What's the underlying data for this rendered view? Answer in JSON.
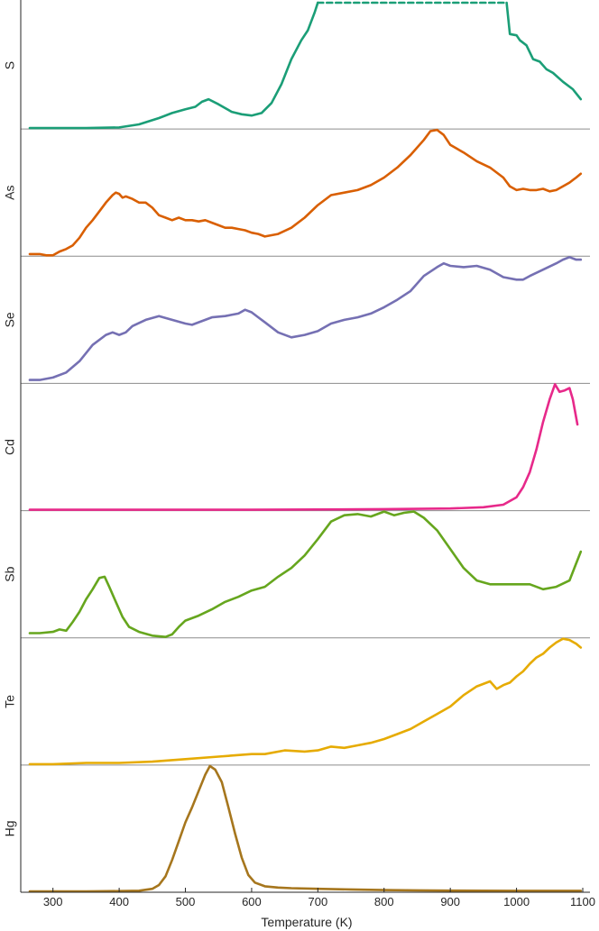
{
  "chart_data": {
    "type": "line",
    "xlabel": "Temperature (K)",
    "xlim": [
      265,
      1100
    ],
    "x_ticks": [
      300,
      400,
      500,
      600,
      700,
      800,
      900,
      1000,
      1100
    ],
    "x_tick_labels": [
      "300",
      "400",
      "500",
      "600",
      "700",
      "800",
      "900",
      "1000",
      "1100"
    ],
    "grid": false,
    "panels": [
      {
        "label": "S",
        "color": "#1b9e77",
        "ylim": [
          0,
          1
        ],
        "clipped_range": [
          700,
          985
        ],
        "x": [
          265,
          300,
          350,
          400,
          430,
          460,
          480,
          500,
          515,
          525,
          535,
          550,
          570,
          585,
          600,
          615,
          630,
          645,
          660,
          675,
          685,
          695,
          700,
          985,
          990,
          1000,
          1005,
          1015,
          1025,
          1035,
          1045,
          1055,
          1070,
          1085,
          1097
        ],
        "y": [
          0,
          0,
          0,
          0.005,
          0.03,
          0.08,
          0.12,
          0.15,
          0.17,
          0.21,
          0.23,
          0.19,
          0.13,
          0.11,
          0.1,
          0.12,
          0.2,
          0.35,
          0.55,
          0.7,
          0.78,
          0.92,
          1.0,
          1.0,
          0.75,
          0.74,
          0.7,
          0.66,
          0.55,
          0.53,
          0.47,
          0.44,
          0.37,
          0.31,
          0.23
        ]
      },
      {
        "label": "As",
        "color": "#d95f02",
        "ylim": [
          0,
          1
        ],
        "x": [
          265,
          280,
          290,
          300,
          310,
          320,
          330,
          340,
          350,
          360,
          370,
          380,
          390,
          395,
          400,
          405,
          410,
          420,
          430,
          440,
          450,
          460,
          470,
          480,
          490,
          500,
          510,
          520,
          530,
          540,
          550,
          560,
          570,
          580,
          590,
          600,
          610,
          620,
          640,
          660,
          680,
          700,
          720,
          740,
          760,
          780,
          800,
          820,
          840,
          860,
          870,
          880,
          890,
          900,
          920,
          940,
          960,
          980,
          990,
          1000,
          1010,
          1020,
          1030,
          1040,
          1050,
          1060,
          1070,
          1080,
          1090,
          1097
        ],
        "y": [
          0.01,
          0.01,
          0.0,
          0.0,
          0.03,
          0.05,
          0.08,
          0.14,
          0.22,
          0.28,
          0.35,
          0.42,
          0.48,
          0.5,
          0.49,
          0.46,
          0.47,
          0.45,
          0.42,
          0.42,
          0.38,
          0.32,
          0.3,
          0.28,
          0.3,
          0.28,
          0.28,
          0.27,
          0.28,
          0.26,
          0.24,
          0.22,
          0.22,
          0.21,
          0.2,
          0.18,
          0.17,
          0.15,
          0.17,
          0.22,
          0.3,
          0.4,
          0.48,
          0.5,
          0.52,
          0.56,
          0.62,
          0.7,
          0.8,
          0.92,
          0.99,
          1.0,
          0.96,
          0.88,
          0.82,
          0.75,
          0.7,
          0.62,
          0.55,
          0.52,
          0.53,
          0.52,
          0.52,
          0.53,
          0.51,
          0.52,
          0.55,
          0.58,
          0.62,
          0.65
        ]
      },
      {
        "label": "Se",
        "color": "#7570b3",
        "ylim": [
          0,
          1
        ],
        "x": [
          265,
          280,
          300,
          320,
          340,
          360,
          380,
          390,
          400,
          410,
          420,
          440,
          460,
          480,
          500,
          510,
          520,
          540,
          560,
          580,
          590,
          600,
          610,
          620,
          640,
          660,
          680,
          700,
          720,
          740,
          760,
          780,
          800,
          820,
          840,
          860,
          880,
          890,
          900,
          920,
          940,
          960,
          980,
          1000,
          1010,
          1020,
          1040,
          1060,
          1070,
          1080,
          1090,
          1097
        ],
        "y": [
          0.02,
          0.02,
          0.04,
          0.08,
          0.17,
          0.3,
          0.38,
          0.4,
          0.38,
          0.4,
          0.45,
          0.5,
          0.53,
          0.5,
          0.47,
          0.46,
          0.48,
          0.52,
          0.53,
          0.55,
          0.58,
          0.56,
          0.52,
          0.48,
          0.4,
          0.36,
          0.38,
          0.41,
          0.47,
          0.5,
          0.52,
          0.55,
          0.6,
          0.66,
          0.73,
          0.85,
          0.92,
          0.95,
          0.93,
          0.92,
          0.93,
          0.9,
          0.84,
          0.82,
          0.82,
          0.85,
          0.9,
          0.95,
          0.98,
          1.0,
          0.98,
          0.98
        ]
      },
      {
        "label": "Cd",
        "color": "#e7298a",
        "ylim": [
          0,
          1
        ],
        "x": [
          265,
          400,
          500,
          600,
          700,
          800,
          900,
          950,
          980,
          1000,
          1010,
          1020,
          1030,
          1040,
          1050,
          1058,
          1065,
          1072,
          1080,
          1085,
          1092
        ],
        "y": [
          0,
          0,
          0,
          0,
          0.002,
          0.005,
          0.01,
          0.02,
          0.04,
          0.1,
          0.18,
          0.3,
          0.48,
          0.7,
          0.88,
          1.0,
          0.94,
          0.95,
          0.97,
          0.88,
          0.68
        ]
      },
      {
        "label": "Sb",
        "color": "#66a61e",
        "ylim": [
          0,
          1
        ],
        "x": [
          265,
          280,
          300,
          310,
          320,
          330,
          340,
          350,
          360,
          370,
          378,
          385,
          395,
          405,
          415,
          430,
          450,
          470,
          480,
          490,
          500,
          520,
          540,
          560,
          580,
          600,
          620,
          640,
          660,
          680,
          700,
          720,
          740,
          760,
          780,
          800,
          815,
          830,
          845,
          860,
          880,
          900,
          920,
          940,
          960,
          980,
          1000,
          1020,
          1040,
          1060,
          1080,
          1097
        ],
        "y": [
          0.03,
          0.03,
          0.04,
          0.06,
          0.05,
          0.12,
          0.2,
          0.3,
          0.38,
          0.47,
          0.48,
          0.4,
          0.28,
          0.16,
          0.08,
          0.04,
          0.01,
          0.0,
          0.02,
          0.08,
          0.13,
          0.17,
          0.22,
          0.28,
          0.32,
          0.37,
          0.4,
          0.48,
          0.55,
          0.65,
          0.78,
          0.92,
          0.97,
          0.98,
          0.96,
          1.0,
          0.97,
          0.99,
          1.0,
          0.95,
          0.85,
          0.7,
          0.55,
          0.45,
          0.42,
          0.42,
          0.42,
          0.42,
          0.38,
          0.4,
          0.45,
          0.68
        ]
      },
      {
        "label": "Te",
        "color": "#e6ab02",
        "ylim": [
          0,
          1
        ],
        "x": [
          265,
          300,
          350,
          400,
          450,
          500,
          550,
          600,
          620,
          650,
          680,
          700,
          720,
          740,
          760,
          780,
          800,
          820,
          840,
          860,
          880,
          900,
          920,
          940,
          960,
          970,
          980,
          990,
          1000,
          1010,
          1020,
          1030,
          1040,
          1050,
          1060,
          1070,
          1080,
          1090,
          1097
        ],
        "y": [
          0,
          0,
          0.01,
          0.01,
          0.02,
          0.04,
          0.06,
          0.08,
          0.08,
          0.11,
          0.1,
          0.11,
          0.14,
          0.13,
          0.15,
          0.17,
          0.2,
          0.24,
          0.28,
          0.34,
          0.4,
          0.46,
          0.55,
          0.62,
          0.66,
          0.6,
          0.63,
          0.65,
          0.7,
          0.74,
          0.8,
          0.85,
          0.88,
          0.93,
          0.97,
          1.0,
          0.99,
          0.96,
          0.93
        ]
      },
      {
        "label": "Hg",
        "color": "#a6761d",
        "ylim": [
          0,
          1
        ],
        "x": [
          265,
          300,
          350,
          400,
          430,
          450,
          460,
          470,
          480,
          490,
          500,
          510,
          520,
          530,
          537,
          545,
          555,
          565,
          575,
          585,
          595,
          605,
          620,
          640,
          660,
          700,
          750,
          800,
          850,
          900,
          950,
          1000,
          1050,
          1097
        ],
        "y": [
          0,
          0,
          0,
          0.002,
          0.005,
          0.02,
          0.05,
          0.12,
          0.25,
          0.4,
          0.55,
          0.67,
          0.8,
          0.93,
          1.0,
          0.97,
          0.87,
          0.67,
          0.46,
          0.27,
          0.13,
          0.07,
          0.04,
          0.03,
          0.025,
          0.02,
          0.015,
          0.01,
          0.008,
          0.006,
          0.005,
          0.004,
          0.004,
          0.004
        ]
      }
    ]
  }
}
